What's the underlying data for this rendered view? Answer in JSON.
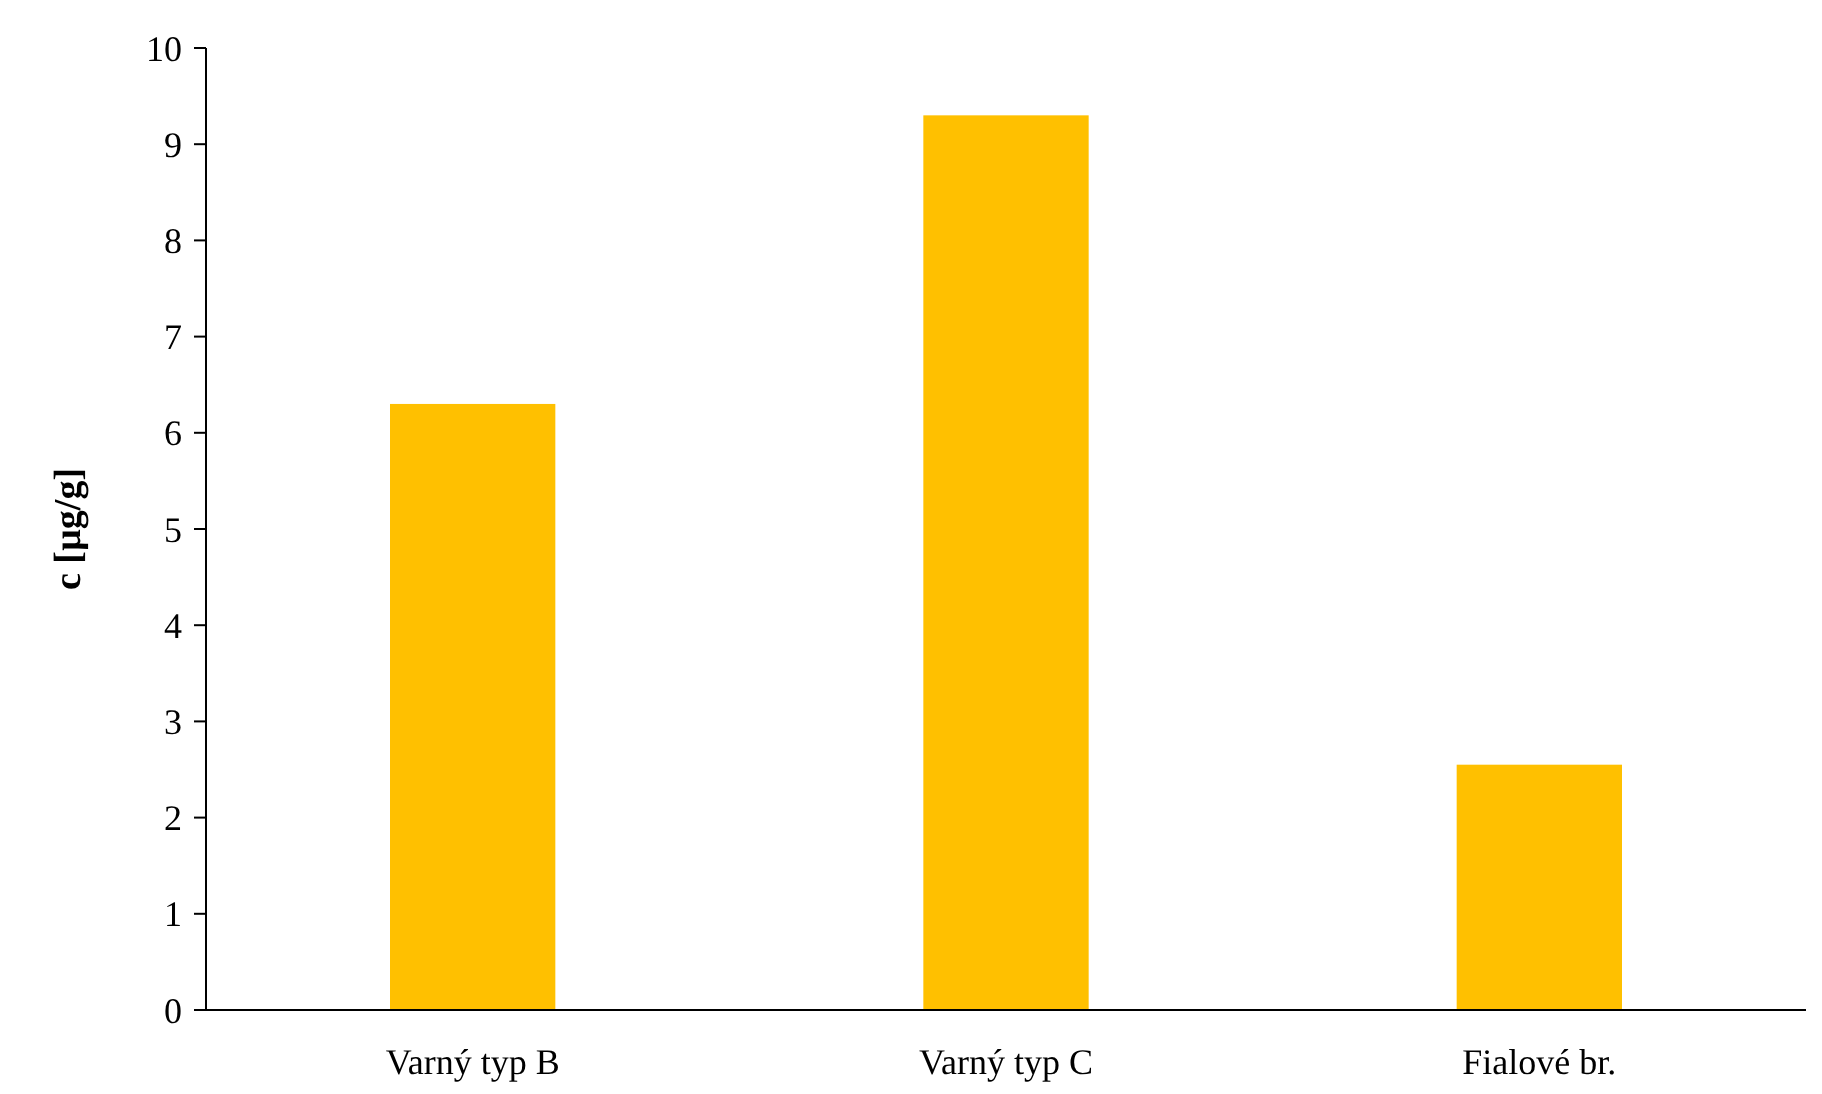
{
  "chart_data": {
    "type": "bar",
    "ylabel": "c [µg/g]",
    "categories": [
      "Varný typ B",
      "Varný typ C",
      "Fialové br."
    ],
    "values": [
      6.3,
      9.3,
      2.55
    ],
    "color": "#ffc000",
    "ylim": [
      0,
      10
    ],
    "yticks": [
      0,
      1,
      2,
      3,
      4,
      5,
      6,
      7,
      8,
      9,
      10
    ],
    "grid": false
  }
}
